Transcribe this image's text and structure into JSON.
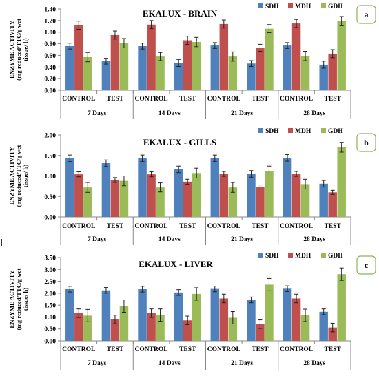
{
  "colors": {
    "SDH": "#4f81bd",
    "MDH": "#c0504d",
    "GDH": "#9bbb59",
    "badge_border": "#8cb45a"
  },
  "chart_data": [
    {
      "type": "bar",
      "panel_label": "a",
      "title": "EKALUX - BRAIN",
      "ylabel_lines": [
        "ENZYME ACTIVITY",
        "(mg reduced/TTC/g wet",
        "tissue/ h)"
      ],
      "ylim": [
        0,
        1.4
      ],
      "yticks": [
        "0.00",
        "0.20",
        "0.40",
        "0.60",
        "0.80",
        "1.00",
        "1.20",
        "1.40"
      ],
      "categories": [
        "CONTROL",
        "TEST",
        "CONTROL",
        "TEST",
        "CONTROL",
        "TEST",
        "CONTROL",
        "TEST"
      ],
      "groups": [
        "7 Days",
        "14 Days",
        "21 Days",
        "28 Days"
      ],
      "legend_position": "top-right",
      "series": [
        {
          "name": "SDH",
          "values": [
            0.76,
            0.5,
            0.76,
            0.47,
            0.77,
            0.46,
            0.77,
            0.44
          ],
          "errors": [
            0.05,
            0.05,
            0.05,
            0.06,
            0.05,
            0.05,
            0.05,
            0.06
          ]
        },
        {
          "name": "MDH",
          "values": [
            1.12,
            0.95,
            1.13,
            0.86,
            1.14,
            0.73,
            1.15,
            0.63
          ],
          "errors": [
            0.07,
            0.07,
            0.07,
            0.07,
            0.07,
            0.06,
            0.07,
            0.07
          ]
        },
        {
          "name": "GDH",
          "values": [
            0.57,
            0.81,
            0.58,
            0.83,
            0.58,
            1.06,
            0.59,
            1.19
          ],
          "errors": [
            0.08,
            0.08,
            0.07,
            0.08,
            0.08,
            0.07,
            0.08,
            0.08
          ]
        }
      ]
    },
    {
      "type": "bar",
      "panel_label": "b",
      "title": "EKALUX - GILLS",
      "ylabel_lines": [
        "ENZYME ACTIVITY",
        "(mg reduced/TTC/g wet",
        "tissue/ h)"
      ],
      "ylim": [
        0,
        2.0
      ],
      "yticks": [
        "0.00",
        "0.50",
        "1.00",
        "1.50",
        "2.00"
      ],
      "categories": [
        "CONTROL",
        "TEST",
        "CONTROL",
        "TEST",
        "CONTROL",
        "TEST",
        "CONTROL",
        "TEST"
      ],
      "groups": [
        "7 Days",
        "14 Days",
        "21 Days",
        "28 Days"
      ],
      "legend_position": "top-right",
      "series": [
        {
          "name": "SDH",
          "values": [
            1.43,
            1.31,
            1.43,
            1.16,
            1.43,
            1.05,
            1.44,
            0.81
          ],
          "errors": [
            0.08,
            0.08,
            0.08,
            0.08,
            0.08,
            0.08,
            0.08,
            0.08
          ]
        },
        {
          "name": "MDH",
          "values": [
            1.04,
            0.9,
            1.04,
            0.86,
            1.05,
            0.73,
            1.05,
            0.6
          ],
          "errors": [
            0.06,
            0.06,
            0.06,
            0.06,
            0.06,
            0.05,
            0.06,
            0.05
          ]
        },
        {
          "name": "GDH",
          "values": [
            0.72,
            0.88,
            0.72,
            1.07,
            0.72,
            1.12,
            0.8,
            1.7
          ],
          "errors": [
            0.12,
            0.12,
            0.11,
            0.12,
            0.12,
            0.12,
            0.12,
            0.12
          ]
        }
      ]
    },
    {
      "type": "bar",
      "panel_label": "c",
      "title": "EKALUX - LIVER",
      "ylabel_lines": [
        "ENZYME ACTIVITY",
        "(mg reduced/TTC/g wet",
        "tissue/ h)"
      ],
      "ylim": [
        0,
        3.5
      ],
      "yticks": [
        "0.00",
        "0.50",
        "1.00",
        "1.50",
        "2.00",
        "2.50",
        "3.00",
        "3.50"
      ],
      "categories": [
        "CONTROL",
        "TEST",
        "CONTROL",
        "TEST",
        "CONTROL",
        "TEST",
        "CONTROL",
        "TEST"
      ],
      "groups": [
        "7 Days",
        "14 Days",
        "21 Days",
        "28 Days"
      ],
      "legend_position": "top-right",
      "series": [
        {
          "name": "SDH",
          "values": [
            2.17,
            2.12,
            2.17,
            2.03,
            2.18,
            1.72,
            2.19,
            1.22
          ],
          "errors": [
            0.12,
            0.12,
            0.12,
            0.12,
            0.12,
            0.12,
            0.12,
            0.12
          ]
        },
        {
          "name": "MDH",
          "values": [
            1.16,
            0.9,
            1.16,
            0.86,
            1.78,
            0.7,
            1.78,
            0.56
          ],
          "errors": [
            0.18,
            0.18,
            0.18,
            0.18,
            0.18,
            0.18,
            0.18,
            0.18
          ]
        },
        {
          "name": "GDH",
          "values": [
            1.06,
            1.46,
            1.08,
            1.97,
            0.97,
            2.36,
            1.07,
            2.8
          ],
          "errors": [
            0.26,
            0.26,
            0.26,
            0.26,
            0.26,
            0.26,
            0.26,
            0.26
          ]
        }
      ]
    }
  ]
}
